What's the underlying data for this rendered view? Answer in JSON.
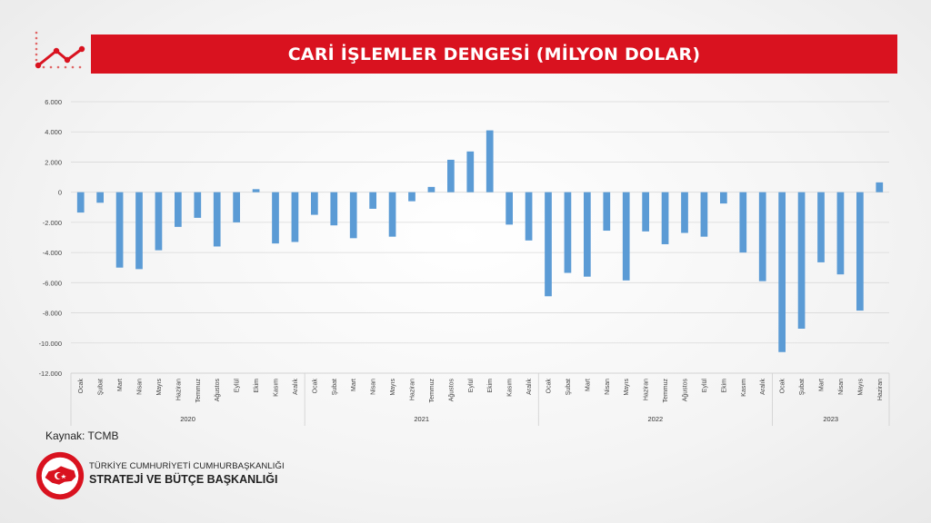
{
  "header": {
    "title": "CARİ İŞLEMLER DENGESİ (MİLYON DOLAR)",
    "logo_icon": "trend-line-icon"
  },
  "source": "Kaynak: TCMB",
  "organization": {
    "line1": "TÜRKİYE CUMHURİYETİ CUMHURBAŞKANLIĞI",
    "line2": "STRATEJİ VE BÜTÇE BAŞKANLIĞI",
    "emblem_icon": "strategy-budget-emblem-icon",
    "emblem_text": "T.C. CUMHURBAŞKANLIĞI STRATEJİ VE BÜTÇE BAŞKANLIĞI"
  },
  "colors": {
    "bar": "#5b9bd5",
    "accent": "#d9121f",
    "grid": "#d9d9d9"
  },
  "chart_data": {
    "type": "bar",
    "title": "CARİ İŞLEMLER DENGESİ (MİLYON DOLAR)",
    "ylim": [
      -12000,
      6000
    ],
    "yticks": [
      6000,
      4000,
      2000,
      0,
      -2000,
      -4000,
      -6000,
      -8000,
      -10000,
      -12000
    ],
    "ytick_labels": [
      "6.000",
      "4.000",
      "2.000",
      "0",
      "-2.000",
      "-4.000",
      "-6.000",
      "-8.000",
      "-10.000",
      "-12.000"
    ],
    "grid": true,
    "legend": "none",
    "groups": [
      {
        "year": "2020",
        "months": [
          "Ocak",
          "Şubat",
          "Mart",
          "Nisan",
          "Mayıs",
          "Haziran",
          "Temmuz",
          "Ağustos",
          "Eylül",
          "Ekim",
          "Kasım",
          "Aralık"
        ],
        "values": [
          -1350,
          -700,
          -5000,
          -5100,
          -3850,
          -2300,
          -1700,
          -3600,
          -2000,
          200,
          -3400,
          -3300
        ]
      },
      {
        "year": "2021",
        "months": [
          "Ocak",
          "Şubat",
          "Mart",
          "Nisan",
          "Mayıs",
          "Haziran",
          "Temmuz",
          "Ağustos",
          "Eylül",
          "Ekim",
          "Kasım",
          "Aralık"
        ],
        "values": [
          -1500,
          -2200,
          -3050,
          -1100,
          -2950,
          -600,
          350,
          2150,
          2700,
          4100,
          -2150,
          -3200
        ]
      },
      {
        "year": "2022",
        "months": [
          "Ocak",
          "Şubat",
          "Mart",
          "Nisan",
          "Mayıs",
          "Haziran",
          "Temmuz",
          "Ağustos",
          "Eylül",
          "Ekim",
          "Kasım",
          "Aralık"
        ],
        "values": [
          -6900,
          -5350,
          -5600,
          -2550,
          -5850,
          -2600,
          -3450,
          -2700,
          -2950,
          -750,
          -4000,
          -5900
        ]
      },
      {
        "year": "2023",
        "months": [
          "Ocak",
          "Şubat",
          "Mart",
          "Nisan",
          "Mayıs",
          "Haziran"
        ],
        "values": [
          -10600,
          -9050,
          -4650,
          -5450,
          -7850,
          650
        ]
      }
    ]
  }
}
